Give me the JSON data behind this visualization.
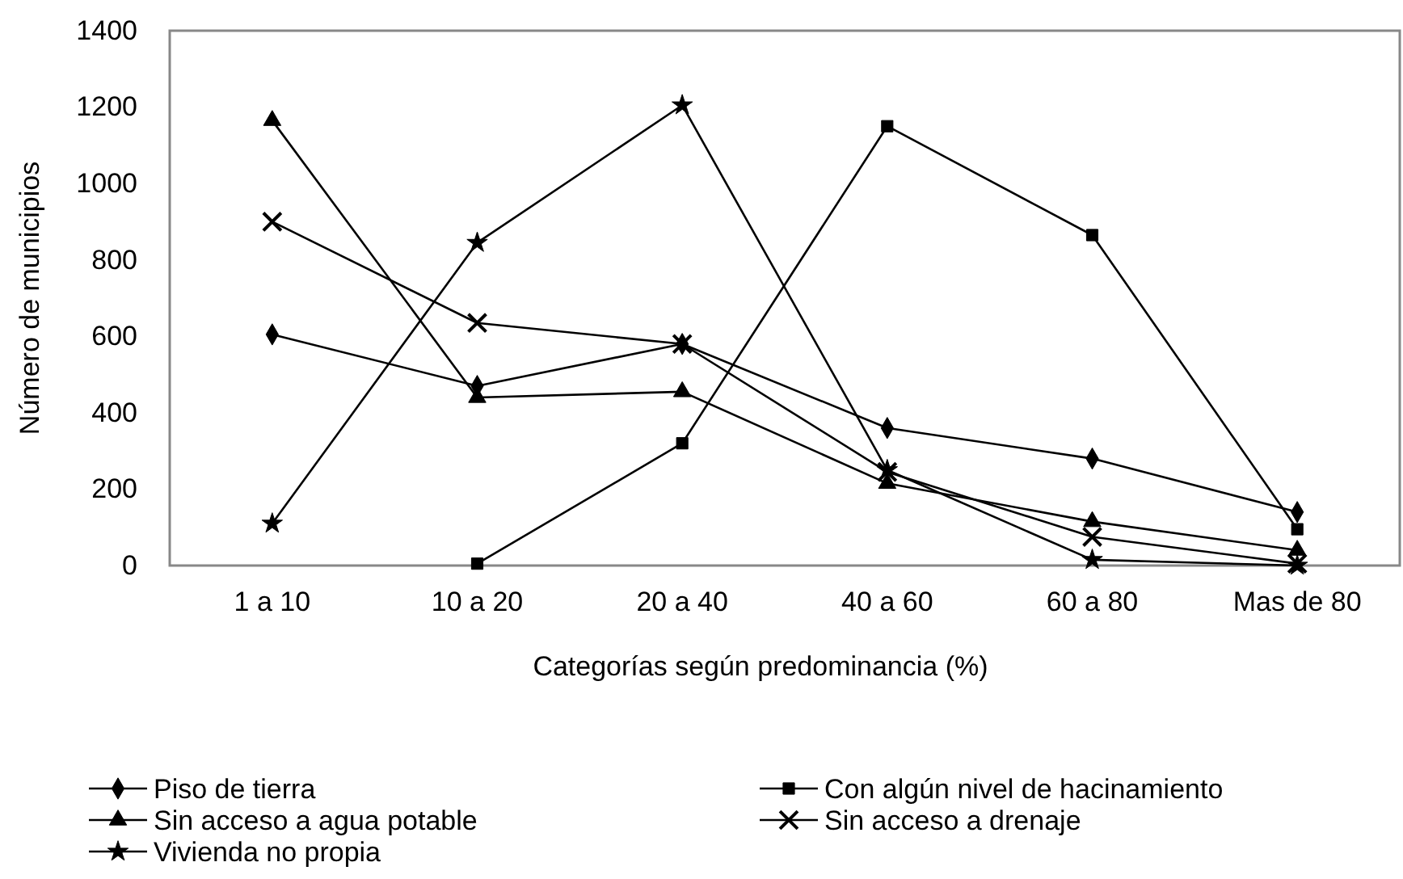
{
  "chart_data": {
    "type": "line",
    "xlabel": "Categorías según predominancia (%)",
    "ylabel": "Número de municipios",
    "categories": [
      "1 a 10",
      "10 a 20",
      "20 a 40",
      "40 a 60",
      "60 a 80",
      "Mas de 80"
    ],
    "ylim": [
      0,
      1400
    ],
    "yticks": [
      0,
      200,
      400,
      600,
      800,
      1000,
      1200,
      1400
    ],
    "grid": false,
    "legend": "bottom",
    "line_style": "solid",
    "series": [
      {
        "name": "Piso de tierra",
        "color": "#000000",
        "marker": "diamond",
        "values": [
          605,
          470,
          580,
          360,
          280,
          140
        ]
      },
      {
        "name": "Con algún nivel de hacinamiento",
        "color": "#000000",
        "marker": "square",
        "values": [
          null,
          5,
          320,
          1150,
          865,
          95
        ]
      },
      {
        "name": "Sin acceso a agua potable",
        "color": "#000000",
        "marker": "triangle",
        "values": [
          1165,
          440,
          455,
          215,
          115,
          40
        ]
      },
      {
        "name": "Sin acceso a drenaje",
        "color": "#000000",
        "marker": "cross",
        "values": [
          900,
          635,
          580,
          245,
          75,
          5
        ]
      },
      {
        "name": "Vivienda no propia",
        "color": "#000000",
        "marker": "star",
        "values": [
          110,
          845,
          1205,
          250,
          15,
          0
        ]
      }
    ]
  }
}
